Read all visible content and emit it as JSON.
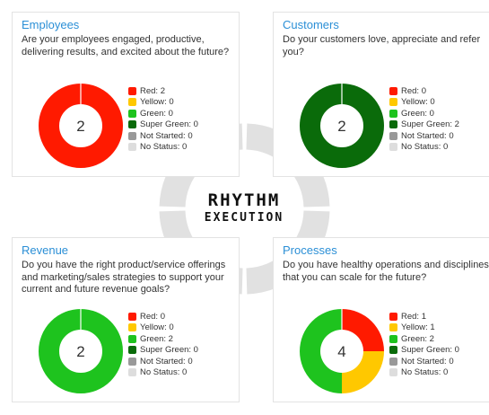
{
  "brand": {
    "line1": "RHYTHM",
    "line2": "EXECUTION"
  },
  "ring_color": "#e1e1e1",
  "status_colors": {
    "red": "#ff1a00",
    "yellow": "#ffc800",
    "green": "#1ec31e",
    "super_green": "#0a6b0a",
    "not_started": "#999999",
    "no_status": "#dddddd"
  },
  "cards": [
    {
      "title": "Employees",
      "question": "Are your employees engaged, productive, delivering results, and excited about the future?",
      "total": "2",
      "legend": [
        {
          "key": "red",
          "label": "Red: 2",
          "value": 2
        },
        {
          "key": "yellow",
          "label": "Yellow: 0",
          "value": 0
        },
        {
          "key": "green",
          "label": "Green: 0",
          "value": 0
        },
        {
          "key": "super_green",
          "label": "Super Green: 0",
          "value": 0
        },
        {
          "key": "not_started",
          "label": "Not Started: 0",
          "value": 0
        },
        {
          "key": "no_status",
          "label": "No Status: 0",
          "value": 0
        }
      ]
    },
    {
      "title": "Customers",
      "question": "Do your customers love, appreciate and refer you?",
      "total": "2",
      "legend": [
        {
          "key": "red",
          "label": "Red: 0",
          "value": 0
        },
        {
          "key": "yellow",
          "label": "Yellow: 0",
          "value": 0
        },
        {
          "key": "green",
          "label": "Green: 0",
          "value": 0
        },
        {
          "key": "super_green",
          "label": "Super Green: 2",
          "value": 2
        },
        {
          "key": "not_started",
          "label": "Not Started: 0",
          "value": 0
        },
        {
          "key": "no_status",
          "label": "No Status: 0",
          "value": 0
        }
      ]
    },
    {
      "title": "Revenue",
      "question": "Do you have the right product/service offerings and marketing/sales strategies to support your current and future revenue goals?",
      "total": "2",
      "legend": [
        {
          "key": "red",
          "label": "Red: 0",
          "value": 0
        },
        {
          "key": "yellow",
          "label": "Yellow: 0",
          "value": 0
        },
        {
          "key": "green",
          "label": "Green: 2",
          "value": 2
        },
        {
          "key": "super_green",
          "label": "Super Green: 0",
          "value": 0
        },
        {
          "key": "not_started",
          "label": "Not Started: 0",
          "value": 0
        },
        {
          "key": "no_status",
          "label": "No Status: 0",
          "value": 0
        }
      ]
    },
    {
      "title": "Processes",
      "question": "Do you have healthy operations and disciplines that you can scale for the future?",
      "total": "4",
      "legend": [
        {
          "key": "red",
          "label": "Red: 1",
          "value": 1
        },
        {
          "key": "yellow",
          "label": "Yellow: 1",
          "value": 1
        },
        {
          "key": "green",
          "label": "Green: 2",
          "value": 2
        },
        {
          "key": "super_green",
          "label": "Super Green: 0",
          "value": 0
        },
        {
          "key": "not_started",
          "label": "Not Started: 0",
          "value": 0
        },
        {
          "key": "no_status",
          "label": "No Status: 0",
          "value": 0
        }
      ]
    }
  ]
}
